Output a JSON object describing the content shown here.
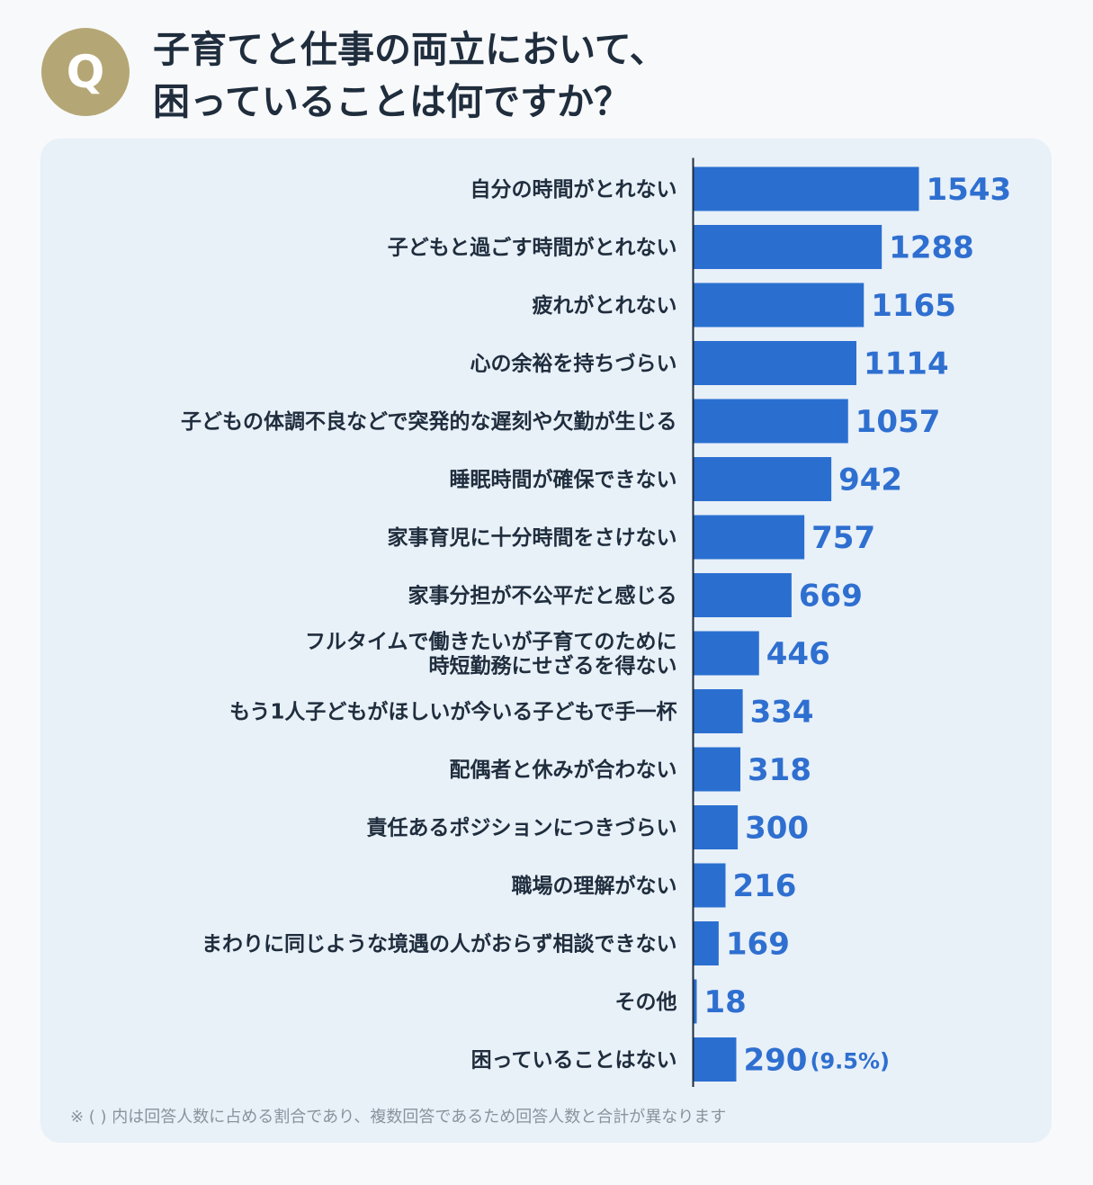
{
  "badge": "Q",
  "title": {
    "line1": "子育てと仕事の両立において、",
    "line2": "困っていることは何ですか？"
  },
  "footnote": "※ ( ) 内は回答人数に占める割合であり、複数回答であるため回答人数と合計が異なります",
  "colors": {
    "bar": "#2a6fd0",
    "value_text": "#2e6fd0",
    "panel": "#e8f0f8",
    "badge": "#b5a775",
    "axis": "#1f2d3d"
  },
  "chart_data": {
    "type": "bar",
    "orientation": "horizontal",
    "categories": [
      [
        "自分の時間がとれない"
      ],
      [
        "子どもと過ごす時間がとれない"
      ],
      [
        "疲れがとれない"
      ],
      [
        "心の余裕を持ちづらい"
      ],
      [
        "子どもの体調不良などで突発的な遅刻や欠勤が生じる"
      ],
      [
        "睡眠時間が確保できない"
      ],
      [
        "家事育児に十分時間をさけない"
      ],
      [
        "家事分担が不公平だと感じる"
      ],
      [
        "フルタイムで働きたいが子育てのために",
        "時短勤務にせざるを得ない"
      ],
      [
        "もう1人子どもがほしいが今いる子どもで手一杯"
      ],
      [
        "配偶者と休みが合わない"
      ],
      [
        "責任あるポジションにつきづらい"
      ],
      [
        "職場の理解がない"
      ],
      [
        "まわりに同じような境遇の人がおらず相談できない"
      ],
      [
        "その他"
      ],
      [
        "困っていることはない"
      ]
    ],
    "values": [
      1543,
      1288,
      1165,
      1114,
      1057,
      942,
      757,
      669,
      446,
      334,
      318,
      300,
      216,
      169,
      18,
      290
    ],
    "value_labels": [
      "1543",
      "1288",
      "1165",
      "1114",
      "1057",
      "942",
      "757",
      "669",
      "446",
      "334",
      "318",
      "300",
      "216",
      "169",
      "18",
      "290"
    ],
    "extra_labels": [
      "",
      "",
      "",
      "",
      "",
      "",
      "",
      "",
      "",
      "",
      "",
      "",
      "",
      "",
      "",
      "(9.5%)"
    ],
    "xlim": [
      0,
      1600
    ],
    "grid": false
  }
}
